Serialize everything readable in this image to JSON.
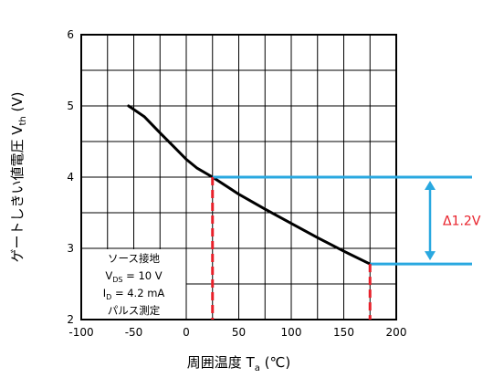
{
  "chart_data": {
    "type": "line",
    "xlabel": {
      "main": "周囲温度 T",
      "sub": "a",
      "unit": "(℃)"
    },
    "ylabel": {
      "main": "ゲートしきい値電圧 V",
      "sub": "th",
      "unit": "(V)"
    },
    "xlim": [
      -100,
      200
    ],
    "ylim": [
      2,
      6
    ],
    "x_ticks": [
      -100,
      -50,
      0,
      50,
      100,
      150,
      200
    ],
    "y_ticks": [
      2,
      3,
      4,
      5,
      6
    ],
    "grid": true,
    "series": [
      {
        "color": "#000000",
        "x": [
          -55,
          -40,
          -25,
          -10,
          0,
          10,
          25,
          50,
          75,
          100,
          125,
          150,
          175
        ],
        "y": [
          5.0,
          4.85,
          4.62,
          4.4,
          4.25,
          4.13,
          4.0,
          3.76,
          3.55,
          3.35,
          3.15,
          2.96,
          2.78
        ]
      }
    ],
    "markers": [
      {
        "x": 25,
        "y": 4.0
      },
      {
        "x": 175,
        "y": 2.78
      }
    ],
    "marker_line_color": "#e8202a",
    "level_line_color": "#29a8e0",
    "annotation": {
      "text": "Δ1.2V",
      "color": "#e8202a"
    },
    "condition_box": {
      "lines": [
        {
          "main": "ソース接地"
        },
        {
          "main": "V",
          "sub": "DS",
          "rest": " = 10 V"
        },
        {
          "main": "I",
          "sub": "D",
          "rest": " = 4.2 mA"
        },
        {
          "main": "パルス測定"
        }
      ]
    }
  }
}
